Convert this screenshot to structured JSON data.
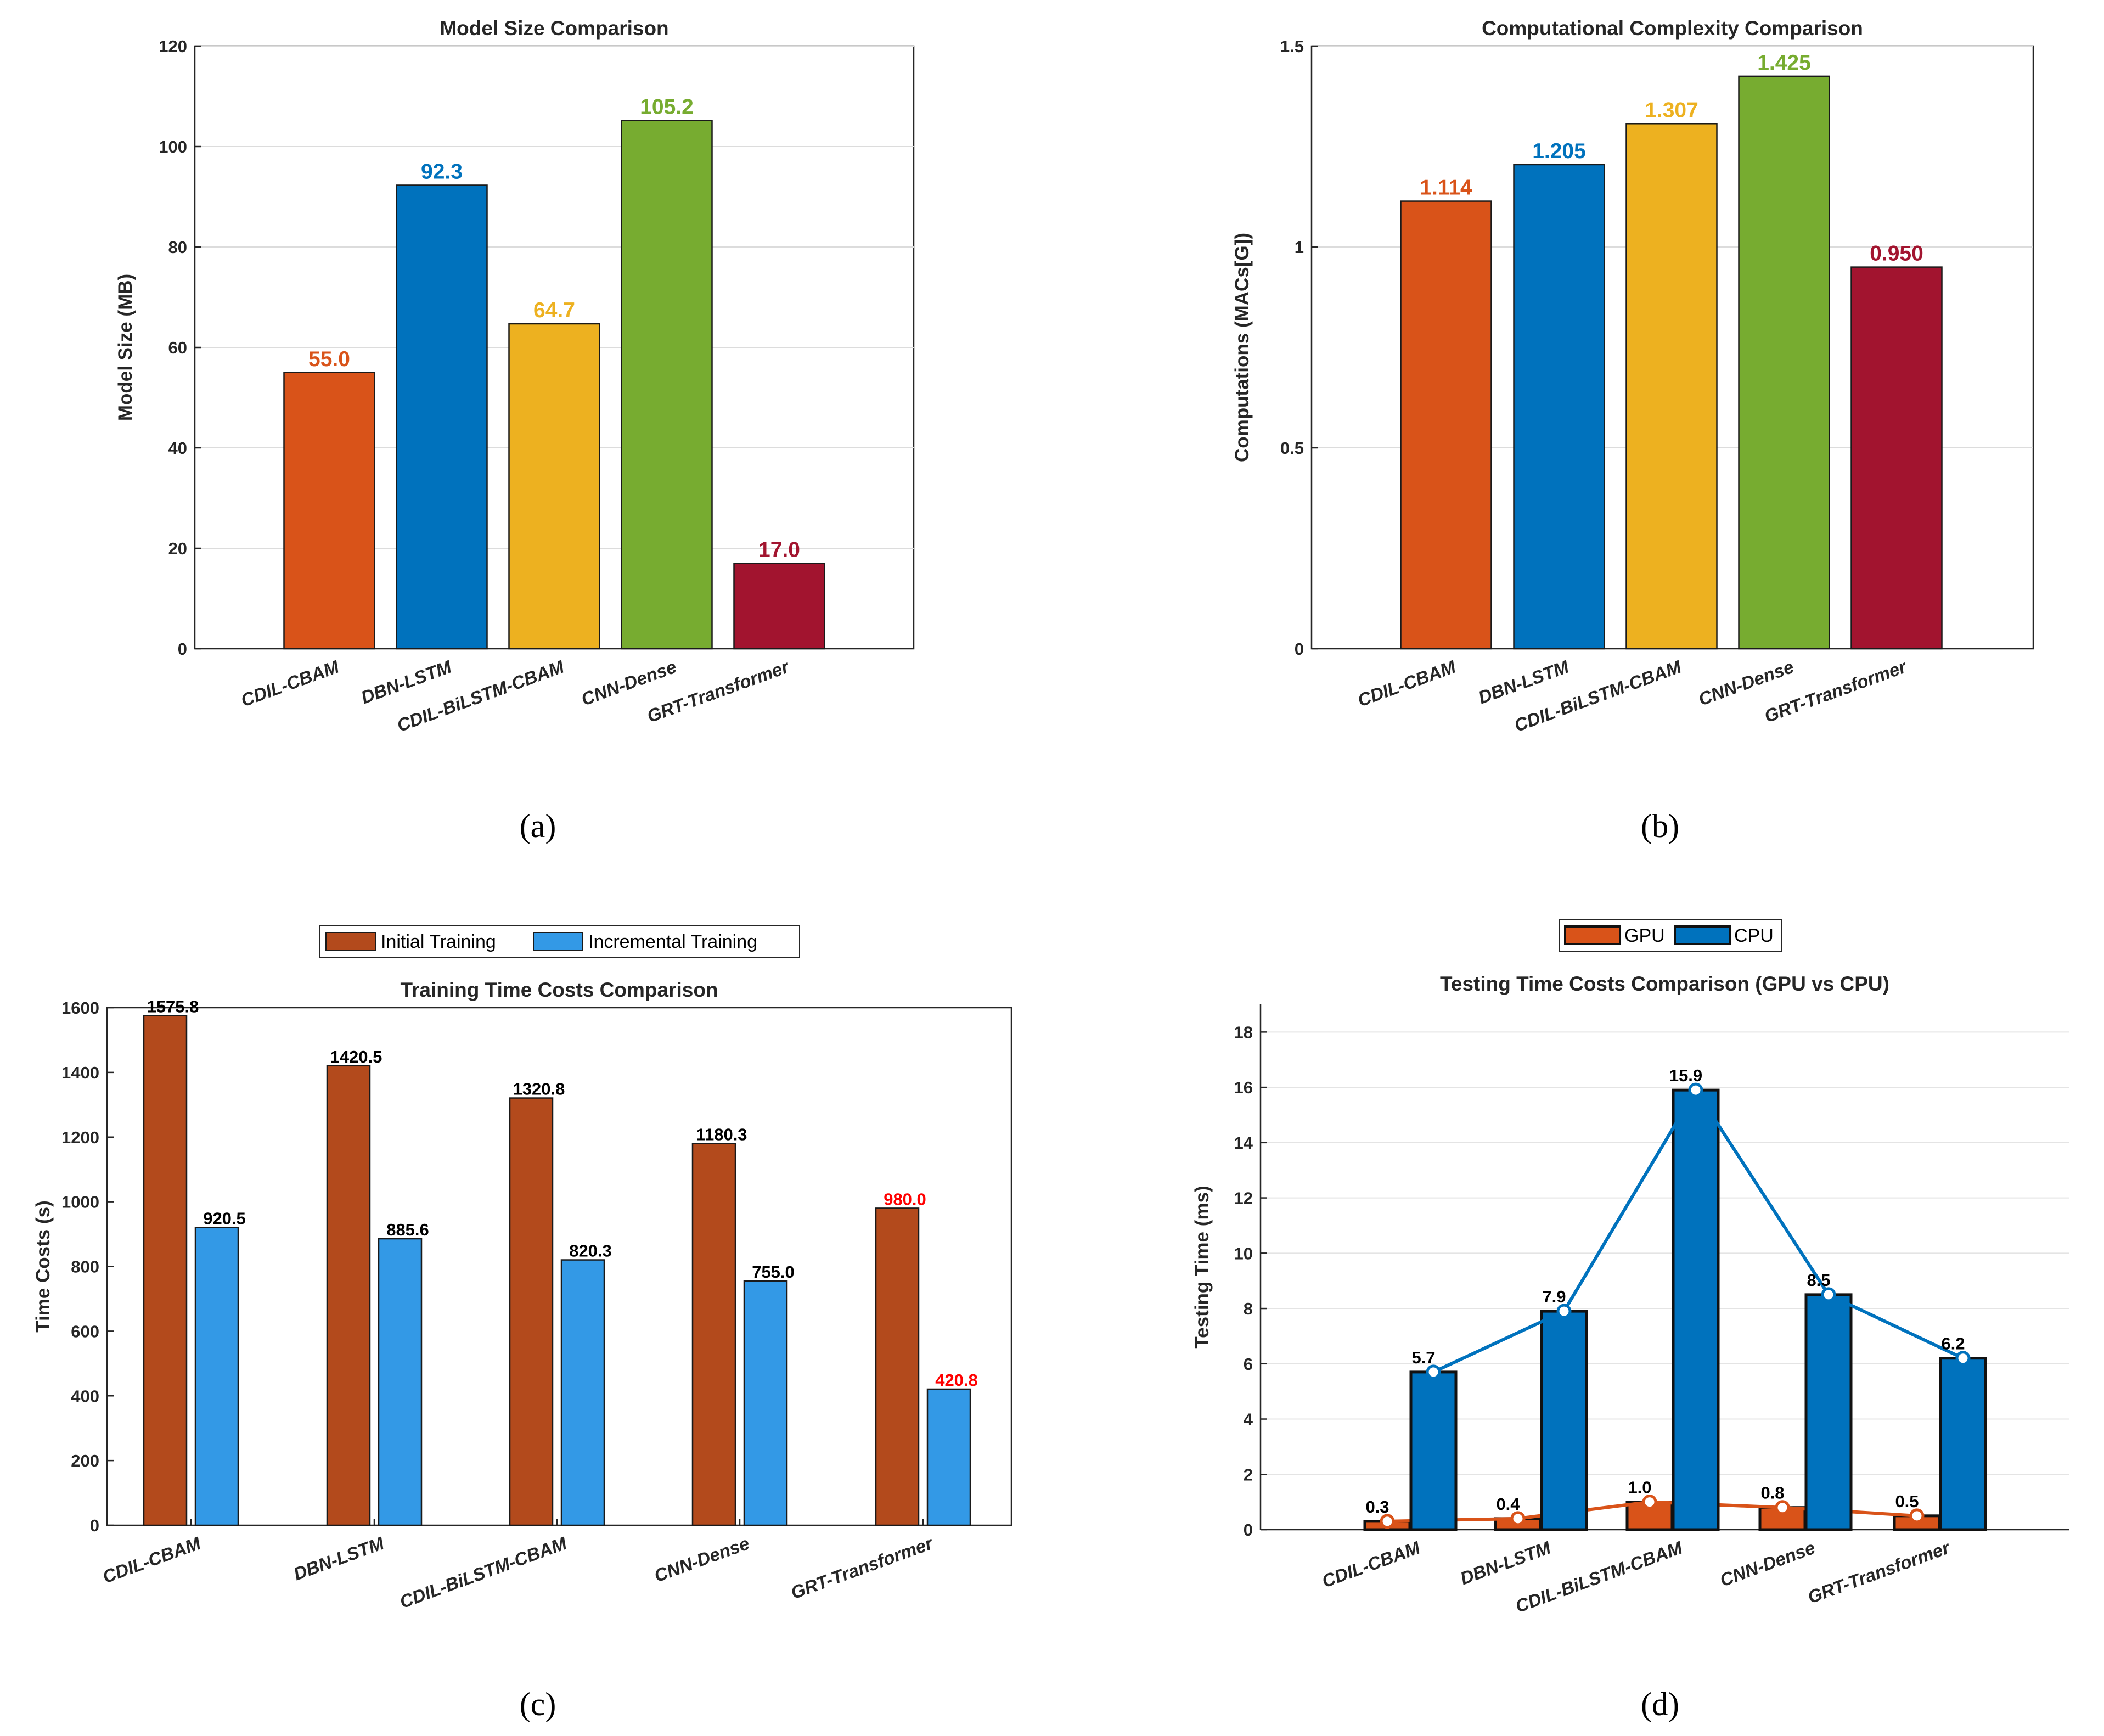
{
  "chart_data": [
    {
      "id": "a",
      "type": "bar",
      "title": "Model Size Comparison",
      "ylabel": "Model Size (MB)",
      "xlabel": "",
      "ylim": [
        0,
        120
      ],
      "yticks": [
        0,
        20,
        40,
        60,
        80,
        100,
        120
      ],
      "grid": true,
      "categories": [
        "CDIL-CBAM",
        "DBN-LSTM",
        "CDIL-BiLSTM-CBAM",
        "CNN-Dense",
        "GRT-Transformer"
      ],
      "values": [
        55.0,
        92.3,
        64.7,
        105.2,
        17.0
      ],
      "value_labels": [
        "55.0",
        "92.3",
        "64.7",
        "105.2",
        "17.0"
      ],
      "colors": [
        "#D95319",
        "#0072BD",
        "#EDB120",
        "#77AC30",
        "#A2142F"
      ],
      "caption": "(a)"
    },
    {
      "id": "b",
      "type": "bar",
      "title": "Computational Complexity Comparison",
      "ylabel": "Computations (MACs[G])",
      "xlabel": "",
      "ylim": [
        0,
        1.5
      ],
      "yticks": [
        0,
        0.5,
        1,
        1.5
      ],
      "ytick_labels": [
        "0",
        "0.5",
        "1",
        "1.5"
      ],
      "grid": true,
      "categories": [
        "CDIL-CBAM",
        "DBN-LSTM",
        "CDIL-BiLSTM-CBAM",
        "CNN-Dense",
        "GRT-Transformer"
      ],
      "values": [
        1.114,
        1.205,
        1.307,
        1.425,
        0.95
      ],
      "value_labels": [
        "1.114",
        "1.205",
        "1.307",
        "1.425",
        "0.950"
      ],
      "colors": [
        "#D95319",
        "#0072BD",
        "#EDB120",
        "#77AC30",
        "#A2142F"
      ],
      "caption": "(b)"
    },
    {
      "id": "c",
      "type": "bar",
      "title": "Training Time Costs Comparison",
      "ylabel": "Time Costs (s)",
      "xlabel": "",
      "ylim": [
        0,
        1600
      ],
      "yticks": [
        0,
        200,
        400,
        600,
        800,
        1000,
        1200,
        1400,
        1600
      ],
      "legend": [
        "Initial Training",
        "Incremental Training"
      ],
      "legend_position": "top-center",
      "categories": [
        "CDIL-CBAM",
        "DBN-LSTM",
        "CDIL-BiLSTM-CBAM",
        "CNN-Dense",
        "GRT-Transformer"
      ],
      "series": [
        {
          "name": "Initial Training",
          "color": "#B34A1C",
          "values": [
            1575.8,
            1420.5,
            1320.8,
            1180.3,
            980.0
          ],
          "labels": [
            "1575.8",
            "1420.5",
            "1320.8",
            "1180.3",
            "980.0"
          ]
        },
        {
          "name": "Incremental Training",
          "color": "#3399E6",
          "values": [
            920.5,
            885.6,
            820.3,
            755.0,
            420.8
          ],
          "labels": [
            "920.5",
            "885.6",
            "820.3",
            "755.0",
            "420.8"
          ]
        }
      ],
      "highlight_label_color": "#FF0000",
      "caption": "(c)"
    },
    {
      "id": "d",
      "type": "bar",
      "title": "Testing Time Costs Comparison (GPU vs CPU)",
      "ylabel": "Testing Time (ms)",
      "xlabel": "",
      "ylim": [
        0,
        19
      ],
      "yticks": [
        0,
        2,
        4,
        6,
        8,
        10,
        12,
        14,
        16,
        18
      ],
      "legend": [
        "GPU",
        "CPU"
      ],
      "legend_position": "top-center",
      "categories": [
        "CDIL-CBAM",
        "DBN-LSTM",
        "CDIL-BiLSTM-CBAM",
        "CNN-Dense",
        "GRT-Transformer"
      ],
      "series": [
        {
          "name": "GPU",
          "color": "#D95319",
          "values": [
            0.3,
            0.4,
            1.0,
            0.8,
            0.5
          ],
          "labels": [
            "0.3",
            "0.4",
            "1.0",
            "0.8",
            "0.5"
          ],
          "line": true
        },
        {
          "name": "CPU",
          "color": "#0072BD",
          "values": [
            5.7,
            7.9,
            15.9,
            8.5,
            6.2
          ],
          "labels": [
            "5.7",
            "7.9",
            "15.9",
            "8.5",
            "6.2"
          ],
          "line": true
        }
      ],
      "caption": "(d)"
    }
  ]
}
